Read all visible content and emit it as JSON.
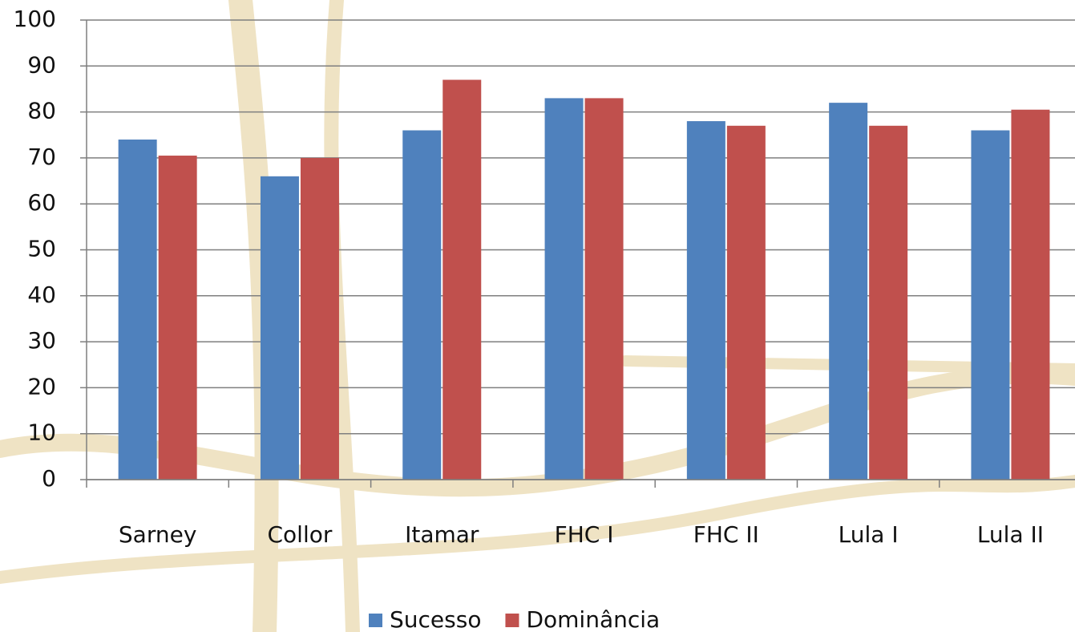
{
  "chart_data": {
    "type": "bar",
    "categories": [
      "Sarney",
      "Collor",
      "Itamar",
      "FHC I",
      "FHC II",
      "Lula I",
      "Lula II"
    ],
    "series": [
      {
        "name": "Sucesso",
        "color": "#4f81bd",
        "values": [
          74,
          66,
          76,
          83,
          78,
          82,
          76
        ]
      },
      {
        "name": "Dominância",
        "color": "#c0504d",
        "values": [
          70.5,
          70,
          87,
          83,
          77,
          77,
          80.5
        ]
      }
    ],
    "ylim": [
      0,
      100
    ],
    "yticks": [
      0,
      10,
      20,
      30,
      40,
      50,
      60,
      70,
      80,
      90,
      100
    ],
    "grid": true
  }
}
